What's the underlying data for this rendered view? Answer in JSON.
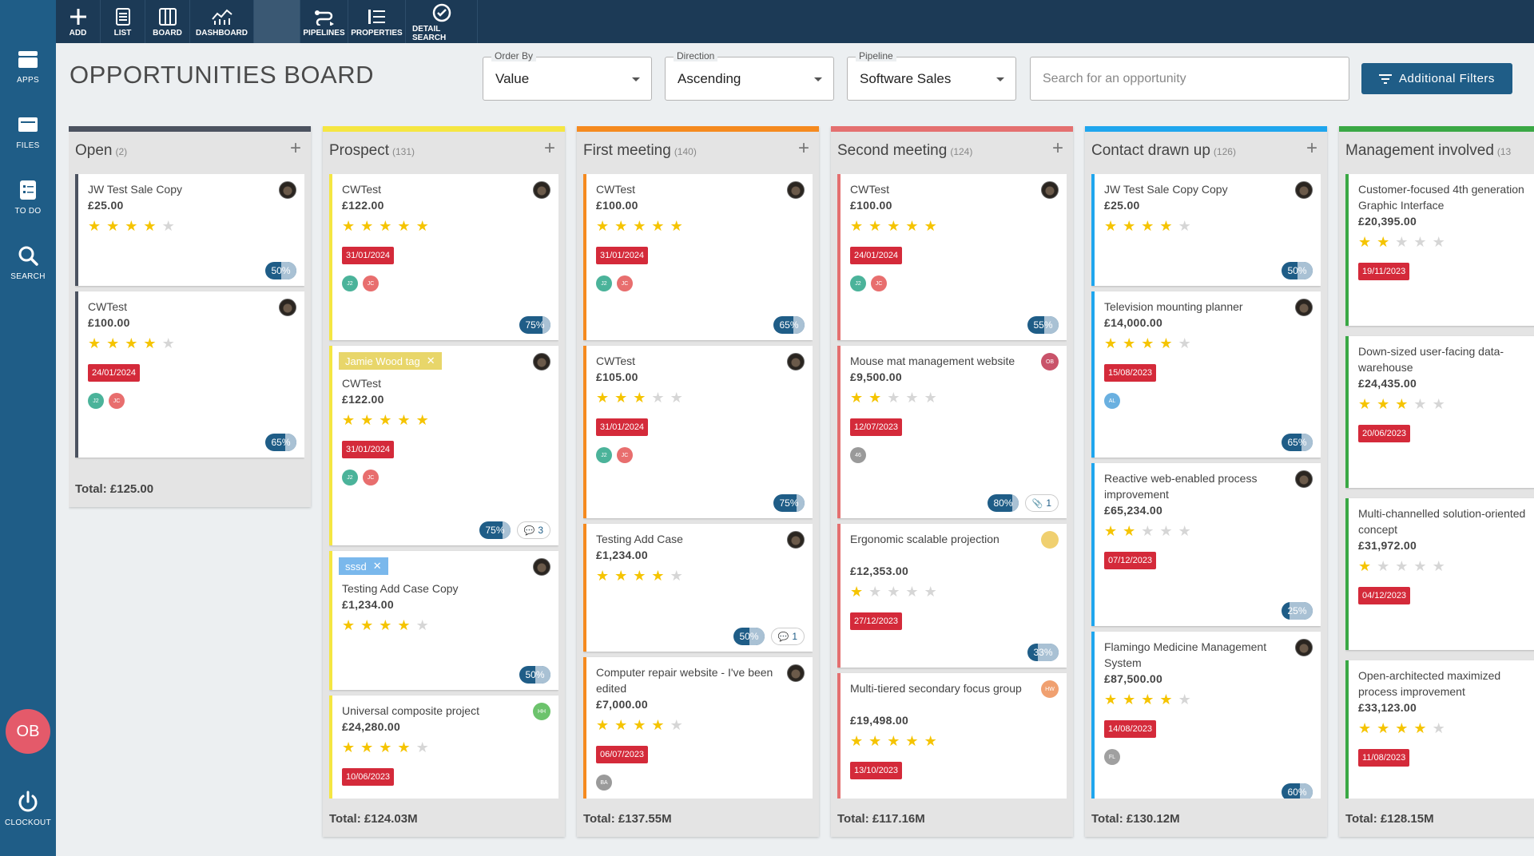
{
  "sidebar": {
    "items": [
      {
        "label": "APPS",
        "icon": "apps-icon"
      },
      {
        "label": "FILES",
        "icon": "files-icon"
      },
      {
        "label": "TO DO",
        "icon": "todo-icon"
      },
      {
        "label": "SEARCH",
        "icon": "search-icon"
      }
    ],
    "user_initials": "OB",
    "clockout_label": "CLOCKOUT"
  },
  "toolbar": {
    "items": [
      {
        "label": "ADD",
        "icon": "add-icon"
      },
      {
        "label": "LIST",
        "icon": "list-icon"
      },
      {
        "label": "BOARD",
        "icon": "board-icon"
      },
      {
        "label": "DASHBOARD",
        "icon": "dashboard-icon"
      },
      {
        "label": "",
        "icon": "blank"
      },
      {
        "label": "PIPELINES",
        "icon": "pipelines-icon"
      },
      {
        "label": "PROPERTIES",
        "icon": "properties-icon"
      },
      {
        "label": "DETAIL SEARCH",
        "icon": "detail-search-icon"
      }
    ]
  },
  "header": {
    "title": "OPPORTUNITIES BOARD",
    "order_by": {
      "label": "Order By",
      "value": "Value"
    },
    "direction": {
      "label": "Direction",
      "value": "Ascending"
    },
    "pipeline": {
      "label": "Pipeline",
      "value": "Software Sales"
    },
    "search_placeholder": "Search for an opportunity",
    "filters_label": "Additional Filters"
  },
  "colors": {
    "open": "#4c5360",
    "prospect": "#f5e642",
    "first_meeting": "#f58a1f",
    "second_meeting": "#e47070",
    "contact": "#1fa6ee",
    "management": "#3aa845",
    "date_badge": "#d42a3a",
    "brand": "#1f5d87"
  },
  "columns": [
    {
      "name": "Open",
      "count": "(2)",
      "total": "Total: £125.00",
      "color": "#4c5360",
      "cards": [
        {
          "title": "JW Test Sale Copy",
          "value": "£25.00",
          "stars": 4,
          "progress": "50%",
          "pct": 50
        },
        {
          "title": "CWTest",
          "value": "£100.00",
          "stars": 4,
          "date": "24/01/2024",
          "people": [
            "J2",
            "JC"
          ],
          "progress": "65%",
          "pct": 65
        }
      ]
    },
    {
      "name": "Prospect",
      "count": "(131)",
      "total": "Total: £124.03M",
      "color": "#f5e642",
      "cards": [
        {
          "title": "CWTest",
          "value": "£122.00",
          "stars": 5,
          "date": "31/01/2024",
          "people": [
            "J2",
            "JC"
          ],
          "progress": "75%",
          "pct": 75
        },
        {
          "tag": "Jamie Wood tag",
          "tagColor": "#e8d66a",
          "title": "CWTest",
          "value": "£122.00",
          "stars": 5,
          "date": "31/01/2024",
          "people": [
            "J2",
            "JC"
          ],
          "progress": "75%",
          "pct": 75,
          "comments": "3"
        },
        {
          "tag": "sssd",
          "tagColor": "#7ab8ec",
          "title": "Testing Add Case Copy",
          "value": "£1,234.00",
          "stars": 4,
          "progress": "50%",
          "pct": 50
        },
        {
          "title": "Universal composite project",
          "value": "£24,280.00",
          "stars": 4,
          "date": "10/06/2023",
          "owner": "HH",
          "ownerColor": "#6cc36c"
        }
      ]
    },
    {
      "name": "First meeting",
      "count": "(140)",
      "total": "Total: £137.55M",
      "color": "#f58a1f",
      "cards": [
        {
          "title": "CWTest",
          "value": "£100.00",
          "stars": 5,
          "date": "31/01/2024",
          "people": [
            "J2",
            "JC"
          ],
          "progress": "65%",
          "pct": 65
        },
        {
          "title": "CWTest",
          "value": "£105.00",
          "stars": 3,
          "date": "31/01/2024",
          "people": [
            "J2",
            "JC"
          ],
          "progress": "75%",
          "pct": 75
        },
        {
          "title": "Testing Add Case",
          "value": "£1,234.00",
          "stars": 4,
          "progress": "50%",
          "pct": 50,
          "comments": "1"
        },
        {
          "title": "Computer repair website - I've been edited",
          "value": "£7,000.00",
          "stars": 4,
          "date": "06/07/2023",
          "people": [
            "BA"
          ]
        }
      ]
    },
    {
      "name": "Second meeting",
      "count": "(124)",
      "total": "Total: £117.16M",
      "color": "#e47070",
      "cards": [
        {
          "title": "CWTest",
          "value": "£100.00",
          "stars": 5,
          "date": "24/01/2024",
          "people": [
            "J2",
            "JC"
          ],
          "progress": "55%",
          "pct": 55
        },
        {
          "title": "Mouse mat management website",
          "value": "£9,500.00",
          "stars": 2,
          "date": "12/07/2023",
          "people": [
            "46"
          ],
          "progress": "80%",
          "pct": 80,
          "attach": "1",
          "owner": "OB",
          "ownerColor": "#c9536a"
        },
        {
          "title": "Ergonomic scalable projection",
          "value": "£12,353.00",
          "stars": 1,
          "date": "27/12/2023",
          "progress": "33%",
          "pct": 33,
          "owner": "",
          "ownerColor": "#f0d070"
        },
        {
          "title": "Multi-tiered secondary focus group",
          "value": "£19,498.00",
          "stars": 5,
          "date": "13/10/2023",
          "owner": "HW",
          "ownerColor": "#f0a070"
        }
      ]
    },
    {
      "name": "Contact drawn up",
      "count": "(126)",
      "total": "Total: £130.12M",
      "color": "#1fa6ee",
      "cards": [
        {
          "title": "JW Test Sale Copy Copy",
          "value": "£25.00",
          "stars": 4,
          "progress": "50%",
          "pct": 50
        },
        {
          "title": "Television mounting planner",
          "value": "£14,000.00",
          "stars": 4,
          "date": "15/08/2023",
          "people": [
            "AL"
          ],
          "progress": "65%",
          "pct": 65
        },
        {
          "title": "Reactive web-enabled process improvement",
          "value": "£65,234.00",
          "stars": 2,
          "date": "07/12/2023",
          "progress": "25%",
          "pct": 25
        },
        {
          "title": "Flamingo Medicine Management System",
          "value": "£87,500.00",
          "stars": 4,
          "date": "14/08/2023",
          "people": [
            "FL"
          ],
          "progress": "60%",
          "pct": 60
        }
      ]
    },
    {
      "name": "Management involved",
      "count": "(13",
      "total": "Total: £128.15M",
      "color": "#3aa845",
      "cards": [
        {
          "title": "Customer-focused 4th generation Graphic Interface",
          "value": "£20,395.00",
          "stars": 2,
          "date": "19/11/2023"
        },
        {
          "title": "Down-sized user-facing data-warehouse",
          "value": "£24,435.00",
          "stars": 3,
          "date": "20/06/2023"
        },
        {
          "title": "Multi-channelled solution-oriented concept",
          "value": "£31,972.00",
          "stars": 1,
          "date": "04/12/2023"
        },
        {
          "title": "Open-architected maximized process improvement",
          "value": "£33,123.00",
          "stars": 4,
          "date": "11/08/2023"
        }
      ]
    }
  ]
}
